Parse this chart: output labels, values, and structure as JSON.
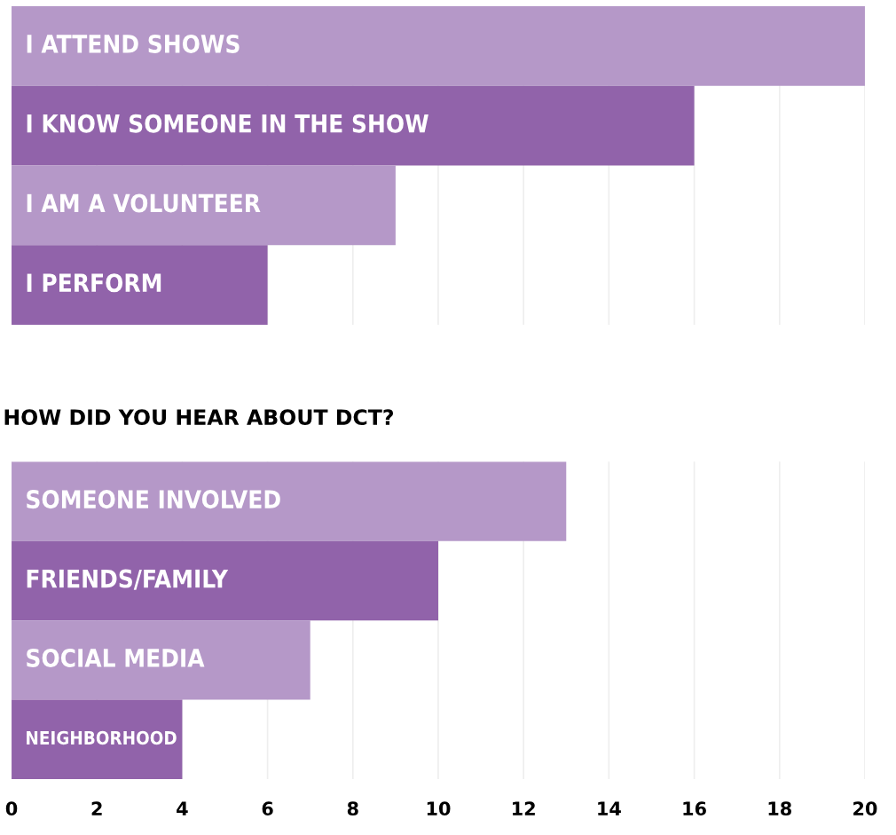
{
  "chart_data": [
    {
      "type": "bar",
      "orientation": "horizontal",
      "categories": [
        "I ATTEND SHOWS",
        "I KNOW SOMEONE IN THE SHOW",
        "I AM A VOLUNTEER",
        "I PERFORM"
      ],
      "values": [
        20,
        16,
        9,
        6
      ],
      "colors": [
        "#b598c8",
        "#9163aa",
        "#b598c8",
        "#9163aa"
      ],
      "xlim": [
        0,
        20
      ],
      "xticks": [
        0,
        2,
        4,
        6,
        8,
        10,
        12,
        14,
        16,
        18,
        20
      ],
      "grid": "x",
      "tick_labels": false
    },
    {
      "type": "bar",
      "orientation": "horizontal",
      "title": "HOW DID YOU HEAR ABOUT DCT?",
      "categories": [
        "SOMEONE INVOLVED",
        "FRIENDS/FAMILY",
        "SOCIAL MEDIA",
        "NEIGHBORHOOD"
      ],
      "values": [
        13,
        10,
        7,
        4
      ],
      "colors": [
        "#b598c8",
        "#9163aa",
        "#b598c8",
        "#9163aa"
      ],
      "xlim": [
        0,
        20
      ],
      "xticks": [
        0,
        2,
        4,
        6,
        8,
        10,
        12,
        14,
        16,
        18,
        20
      ],
      "grid": "x",
      "tick_labels": "x"
    }
  ]
}
